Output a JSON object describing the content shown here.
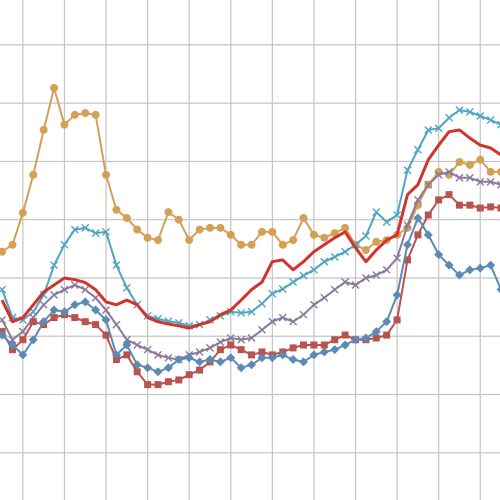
{
  "chart_data": {
    "type": "line",
    "x": [
      0,
      1,
      2,
      3,
      4,
      5,
      6,
      7,
      8,
      9,
      10,
      11,
      12,
      13,
      14,
      15,
      16,
      17,
      18,
      19,
      20,
      21,
      22,
      23,
      24,
      25,
      26,
      27,
      28,
      29,
      30,
      31,
      32,
      33,
      34,
      35,
      36,
      37,
      38,
      39,
      40,
      41,
      42,
      43,
      44,
      45,
      46,
      47,
      48
    ],
    "xlim": [
      -0.2,
      47.9
    ],
    "xticks": [
      2,
      6,
      10,
      14,
      18,
      22,
      26,
      30,
      34,
      38,
      42,
      46
    ],
    "ylim": [
      -0.81,
      7.77
    ],
    "yticks": [
      0,
      1,
      2,
      3,
      4,
      5,
      6,
      7
    ],
    "grid": true,
    "series": [
      {
        "color": "#d4a056",
        "marker": "circle",
        "values": [
          3.45,
          3.57,
          4.12,
          4.77,
          5.54,
          6.26,
          5.63,
          5.8,
          5.83,
          5.8,
          4.77,
          4.17,
          4.03,
          3.83,
          3.69,
          3.65,
          4.13,
          4.0,
          3.65,
          3.83,
          3.86,
          3.86,
          3.74,
          3.57,
          3.57,
          3.79,
          3.79,
          3.57,
          3.65,
          4.03,
          3.74,
          3.69,
          3.77,
          3.86,
          3.57,
          3.48,
          3.62,
          3.65,
          3.74,
          3.86,
          4.25,
          4.6,
          4.82,
          4.77,
          4.99,
          4.94,
          5.03,
          4.82,
          4.82
        ]
      },
      {
        "color": "#4fa3c4",
        "marker": "x",
        "values": [
          2.8,
          2.32,
          2.28,
          2.42,
          2.71,
          3.22,
          3.57,
          3.83,
          3.86,
          3.77,
          3.79,
          3.22,
          2.83,
          2.54,
          2.35,
          2.3,
          2.26,
          2.23,
          2.18,
          2.2,
          2.28,
          2.35,
          2.42,
          2.4,
          2.42,
          2.56,
          2.73,
          2.81,
          2.93,
          3.04,
          3.14,
          3.28,
          3.36,
          3.45,
          3.57,
          3.72,
          4.13,
          3.96,
          4.08,
          4.85,
          5.2,
          5.54,
          5.57,
          5.75,
          5.88,
          5.85,
          5.78,
          5.71,
          5.63
        ]
      },
      {
        "color": "#d0342c",
        "marker": "none",
        "values": [
          2.62,
          2.25,
          2.32,
          2.54,
          2.76,
          2.88,
          3.0,
          2.97,
          2.92,
          2.8,
          2.59,
          2.54,
          2.62,
          2.54,
          2.32,
          2.25,
          2.21,
          2.18,
          2.14,
          2.2,
          2.25,
          2.37,
          2.45,
          2.62,
          2.8,
          2.93,
          3.28,
          3.31,
          3.14,
          3.28,
          3.45,
          3.57,
          3.69,
          3.79,
          3.52,
          3.28,
          3.48,
          3.65,
          3.74,
          4.43,
          4.6,
          5.03,
          5.28,
          5.51,
          5.54,
          5.4,
          5.28,
          5.23,
          5.11
        ]
      },
      {
        "color": "#8a7a9a",
        "marker": "x",
        "values": [
          2.28,
          1.94,
          2.08,
          2.32,
          2.54,
          2.71,
          2.8,
          2.88,
          2.8,
          2.66,
          2.45,
          2.2,
          1.94,
          1.85,
          1.77,
          1.68,
          1.63,
          1.6,
          1.68,
          1.73,
          1.8,
          1.9,
          1.97,
          1.94,
          1.97,
          2.11,
          2.25,
          2.32,
          2.25,
          2.37,
          2.54,
          2.66,
          2.8,
          2.93,
          2.88,
          3.0,
          3.05,
          3.14,
          3.34,
          3.91,
          4.34,
          4.6,
          4.77,
          4.82,
          4.72,
          4.72,
          4.65,
          4.65,
          4.6
        ]
      },
      {
        "color": "#b85450",
        "marker": "square",
        "values": [
          2.08,
          1.77,
          1.94,
          2.25,
          2.2,
          2.32,
          2.37,
          2.32,
          2.25,
          2.2,
          2.02,
          1.6,
          1.68,
          1.39,
          1.17,
          1.17,
          1.22,
          1.25,
          1.34,
          1.42,
          1.56,
          1.77,
          1.85,
          1.77,
          1.68,
          1.73,
          1.68,
          1.73,
          1.8,
          1.85,
          1.85,
          1.85,
          1.94,
          2.02,
          1.94,
          1.94,
          1.97,
          2.02,
          2.28,
          3.31,
          3.74,
          4.08,
          4.34,
          4.43,
          4.25,
          4.25,
          4.2,
          4.22,
          4.2
        ]
      },
      {
        "color": "#5b8bb5",
        "marker": "diamond",
        "values": [
          2.02,
          1.85,
          1.68,
          1.94,
          2.25,
          2.45,
          2.42,
          2.54,
          2.59,
          2.45,
          2.28,
          1.68,
          1.85,
          1.51,
          1.46,
          1.39,
          1.46,
          1.6,
          1.63,
          1.56,
          1.6,
          1.56,
          1.63,
          1.46,
          1.51,
          1.63,
          1.63,
          1.68,
          1.6,
          1.56,
          1.68,
          1.73,
          1.77,
          1.85,
          1.94,
          1.97,
          2.08,
          2.25,
          2.71,
          3.57,
          4.03,
          3.74,
          3.4,
          3.22,
          3.05,
          3.14,
          3.17,
          3.22,
          2.8
        ]
      }
    ]
  }
}
